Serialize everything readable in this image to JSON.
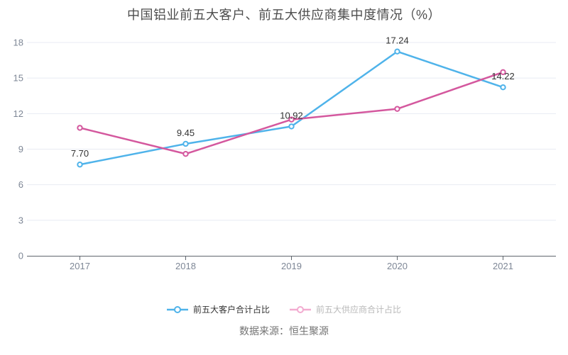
{
  "chart_data": {
    "type": "line",
    "title": "中国铝业前五大客户、前五大供应商集中度情况（%）",
    "categories": [
      "2017",
      "2018",
      "2019",
      "2020",
      "2021"
    ],
    "series": [
      {
        "name": "前五大客户合计占比",
        "color": "#4fb3ea",
        "values": [
          7.7,
          9.45,
          10.92,
          17.24,
          14.22
        ],
        "point_labels": [
          "7.70",
          "9.45",
          "10.92",
          "17.24",
          "14.22"
        ],
        "show_labels": true
      },
      {
        "name": "前五大供应商合计占比",
        "color": "#d4589e",
        "values": [
          10.8,
          8.6,
          11.5,
          12.4,
          15.5
        ],
        "point_labels": [],
        "show_labels": false
      }
    ],
    "ylim": [
      0,
      18
    ],
    "yticks": [
      0,
      3,
      6,
      9,
      12,
      15,
      18
    ],
    "grid": true,
    "legend_position": "bottom",
    "source": "数据来源：恒生聚源"
  },
  "legend": {
    "items": [
      {
        "marker_color": "#4fb3ea",
        "text_color": "#333333"
      },
      {
        "marker_color": "#f2abd0",
        "text_color": "#b9b9b9"
      }
    ]
  },
  "colors": {
    "title": "#4d4d4d",
    "grid_line": "#e8ebf3",
    "axis_line": "#5f666d",
    "axis_label": "#7e8796",
    "data_label": "#333333",
    "point_fill": "#ffffff"
  }
}
